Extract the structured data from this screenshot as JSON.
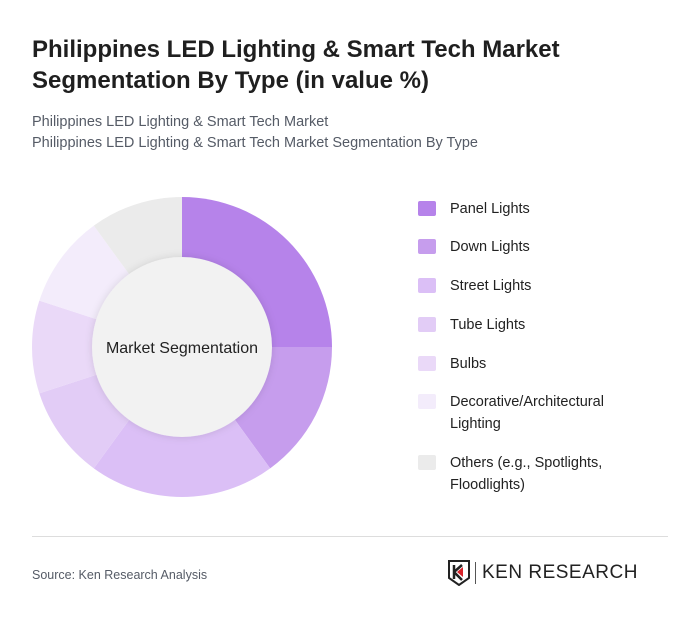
{
  "title": "Philippines LED Lighting & Smart Tech Market Segmentation By Type (in value %)",
  "subtitle_1": "Philippines LED Lighting & Smart Tech Market",
  "subtitle_2": "Philippines LED Lighting & Smart Tech Market Segmentation By Type",
  "source": "Source: Ken Research Analysis",
  "logo": {
    "text": "KEN RESEARCH"
  },
  "chart_data": {
    "type": "pie",
    "variant": "donut",
    "center_label": "Market Segmentation",
    "categories": [
      "Panel Lights",
      "Down Lights",
      "Street Lights",
      "Tube Lights",
      "Bulbs",
      "Decorative/Architectural Lighting",
      "Others (e.g., Spotlights, Floodlights)"
    ],
    "values": [
      25,
      15,
      20,
      10,
      10,
      10,
      10
    ],
    "colors": [
      "#b683ea",
      "#c69ded",
      "#dbbff6",
      "#e2ccf6",
      "#ead9f8",
      "#f3ecfb",
      "#ebebeb"
    ],
    "legend_position": "right"
  }
}
